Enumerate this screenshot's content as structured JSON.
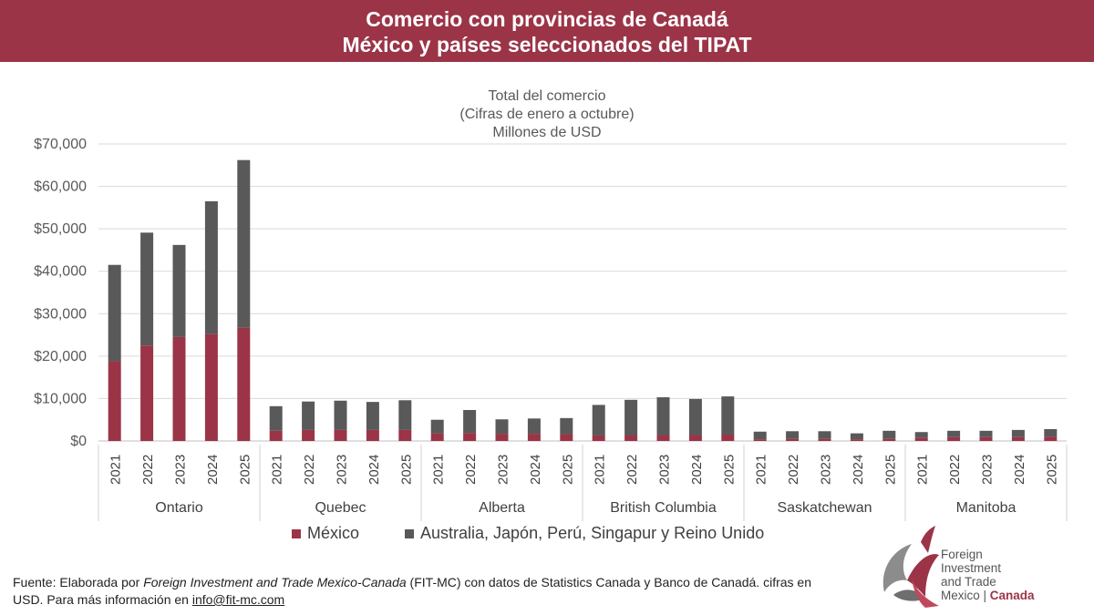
{
  "header": {
    "title_line1": "Comercio con provincias de Canadá",
    "title_line2": "México y países seleccionados del TIPAT"
  },
  "colors": {
    "mexico": "#9b3447",
    "others": "#595959",
    "header_bg": "#9b3447",
    "grid": "#d9d9d9"
  },
  "chart_data": {
    "type": "bar",
    "stacked": true,
    "title_lines": [
      "Total del comercio",
      "(Cifras de enero a octubre)",
      "Millones de USD"
    ],
    "groups": [
      "Ontario",
      "Quebec",
      "Alberta",
      "British Columbia",
      "Saskatchewan",
      "Manitoba"
    ],
    "years": [
      "2021",
      "2022",
      "2023",
      "2024",
      "2025"
    ],
    "ylim": [
      0,
      70000
    ],
    "yticks": [
      0,
      10000,
      20000,
      30000,
      40000,
      50000,
      60000,
      70000
    ],
    "ytick_labels": [
      "$0",
      "$10,000",
      "$20,000",
      "$30,000",
      "$40,000",
      "$50,000",
      "$60,000",
      "$70,000"
    ],
    "grid": true,
    "legend_position": "bottom",
    "series": [
      {
        "name": "México",
        "values": [
          18800,
          22500,
          24500,
          25200,
          26700,
          2400,
          2600,
          2600,
          2600,
          2600,
          1800,
          1900,
          1700,
          1700,
          1600,
          1300,
          1400,
          1400,
          1400,
          1500,
          400,
          500,
          500,
          400,
          500,
          800,
          900,
          900,
          900,
          1000
        ]
      },
      {
        "name": "Australia, Japón, Perú, Singapur y Reino Unido",
        "values": [
          22700,
          26600,
          21700,
          31300,
          39500,
          5800,
          6700,
          6900,
          6600,
          7000,
          3200,
          5400,
          3400,
          3600,
          3800,
          7200,
          8300,
          8900,
          8500,
          9000,
          1800,
          1800,
          1800,
          1400,
          1900,
          1300,
          1500,
          1500,
          1700,
          1800
        ]
      }
    ]
  },
  "footer": {
    "prefix": "Fuente: Elaborada por ",
    "italic": "Foreign Investment and Trade Mexico-Canada",
    "rest": " (FIT-MC) con datos de Statistics Canada y Banco de Canadá. cifras en USD. Para más información en ",
    "email": "info@fit-mc.com"
  },
  "logo": {
    "line1": "Foreign",
    "line2": "Investment",
    "line3": "and Trade",
    "line4a": "Mexico | ",
    "line4b": "Canada"
  }
}
